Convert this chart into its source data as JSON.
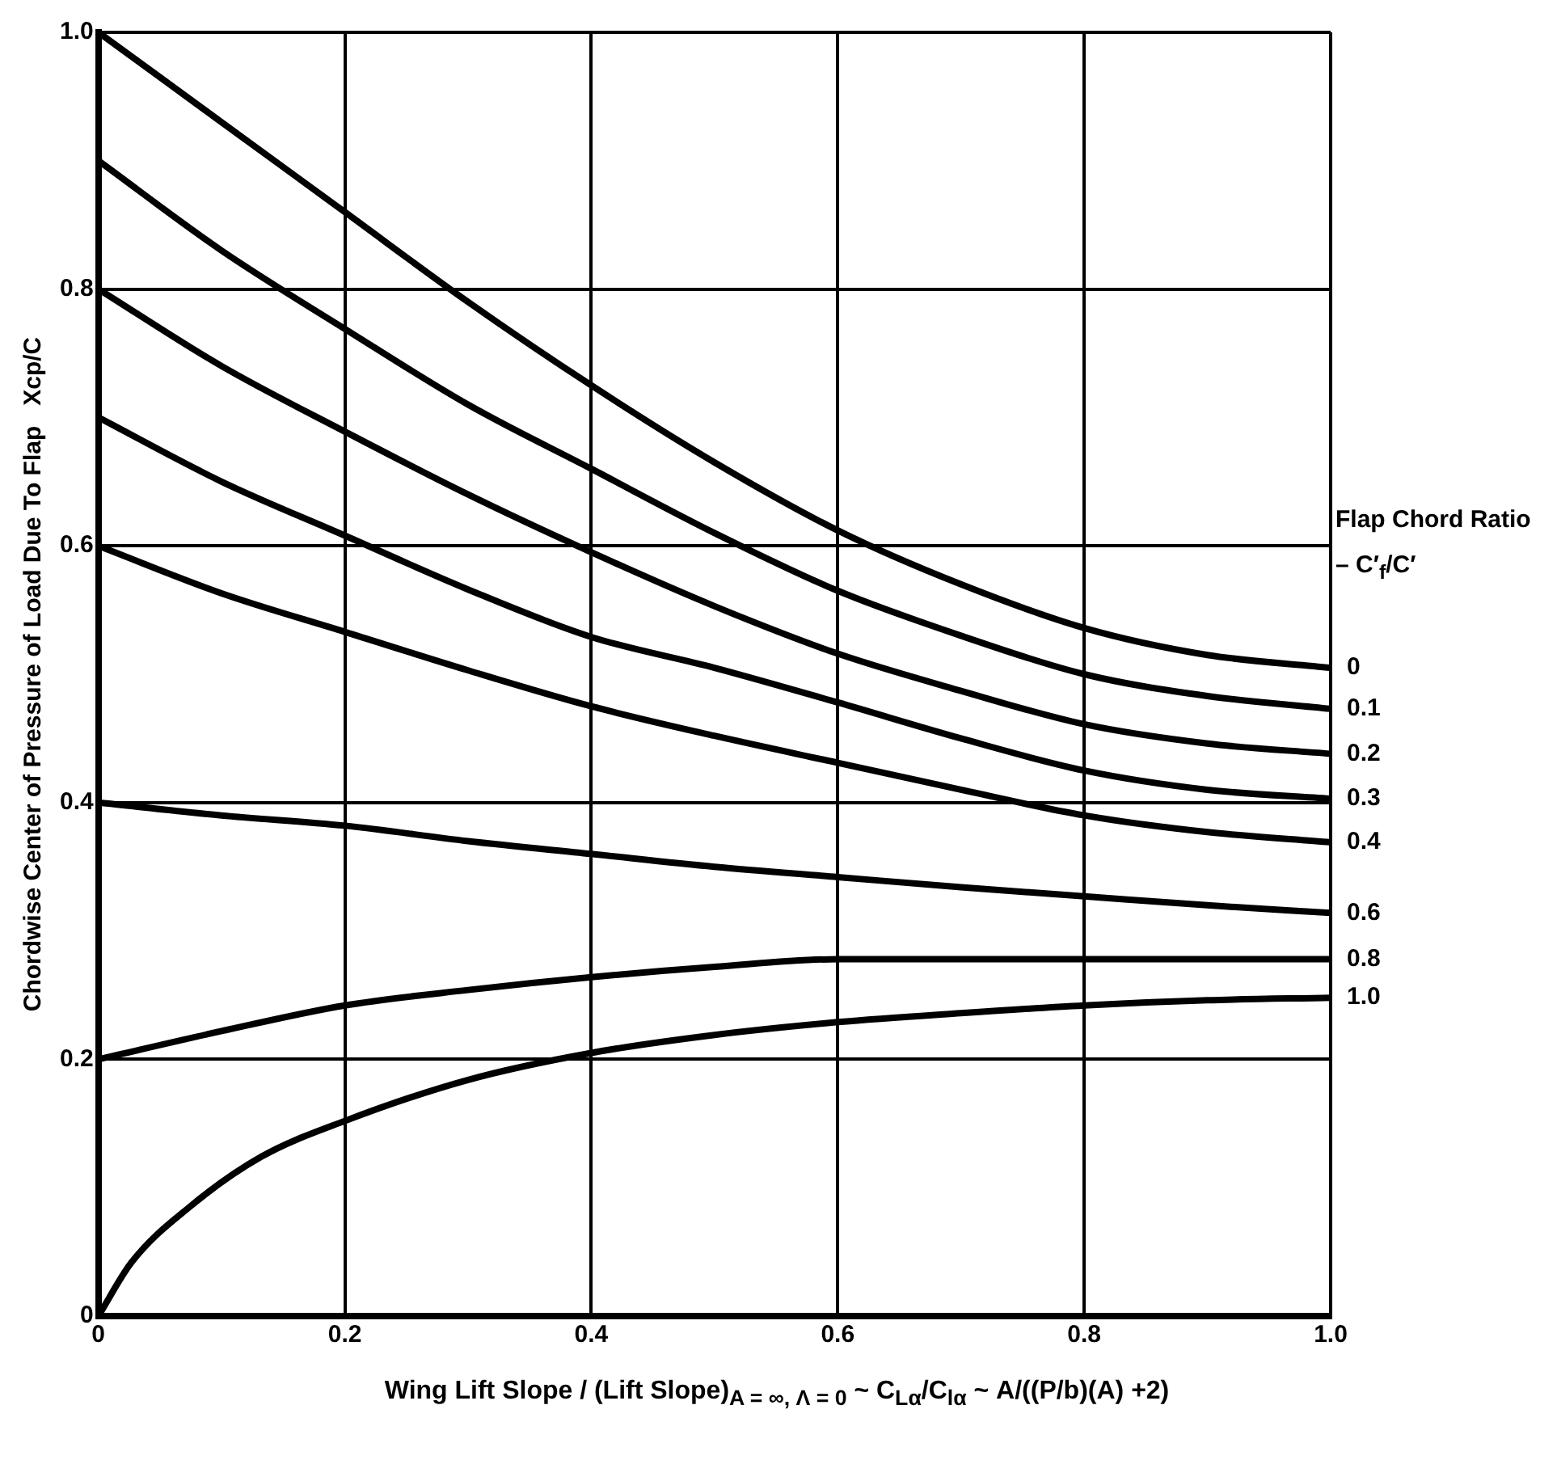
{
  "chart_data": {
    "type": "line",
    "xlabel": "Wing Lift Slope / (Lift Slope)$_{A = ∞, Λ = 0}$ ~ C$_{Lα}$/C$_{lα}$ ~ A/((P/b)(A) +2)",
    "ylabel": "Chordwise Center of Pressure of Load Due To Flap   Xcp/C",
    "legend_title": "Flap Chord Ratio – C′$_{f}$/C′",
    "x": [
      0,
      0.1,
      0.2,
      0.3,
      0.4,
      0.5,
      0.6,
      0.7,
      0.8,
      0.9,
      1.0
    ],
    "series": [
      {
        "name": "0",
        "color": "#000000",
        "values": [
          1.0,
          0.93,
          0.86,
          0.79,
          0.725,
          0.665,
          0.612,
          0.57,
          0.536,
          0.515,
          0.505
        ]
      },
      {
        "name": "0.1",
        "color": "#000000",
        "values": [
          0.9,
          0.83,
          0.769,
          0.71,
          0.66,
          0.61,
          0.565,
          0.53,
          0.5,
          0.483,
          0.473
        ]
      },
      {
        "name": "0.2",
        "color": "#000000",
        "values": [
          0.8,
          0.74,
          0.689,
          0.64,
          0.595,
          0.553,
          0.516,
          0.487,
          0.461,
          0.446,
          0.438
        ]
      },
      {
        "name": "0.3",
        "color": "#000000",
        "values": [
          0.7,
          0.65,
          0.608,
          0.566,
          0.529,
          0.505,
          0.478,
          0.45,
          0.425,
          0.41,
          0.403
        ]
      },
      {
        "name": "0.4",
        "color": "#000000",
        "values": [
          0.6,
          0.563,
          0.533,
          0.503,
          0.475,
          0.452,
          0.431,
          0.41,
          0.39,
          0.377,
          0.369
        ]
      },
      {
        "name": "0.6",
        "color": "#000000",
        "values": [
          0.4,
          0.39,
          0.382,
          0.37,
          0.36,
          0.35,
          0.342,
          0.334,
          0.327,
          0.32,
          0.314
        ]
      },
      {
        "name": "0.8",
        "color": "#000000",
        "values": [
          0.2,
          0.222,
          0.242,
          0.254,
          0.264,
          0.272,
          0.278,
          0.278,
          0.278,
          0.278,
          0.278
        ]
      },
      {
        "name": "1.0",
        "color": "#000000",
        "x": [
          0,
          0.027,
          0.074,
          0.132,
          0.2,
          0.3,
          0.4,
          0.5,
          0.6,
          0.7,
          0.8,
          0.9,
          1.0
        ],
        "values": [
          0,
          0.042,
          0.085,
          0.124,
          0.152,
          0.184,
          0.205,
          0.219,
          0.229,
          0.236,
          0.242,
          0.246,
          0.248
        ]
      }
    ],
    "xlim": [
      0,
      1
    ],
    "xticks": [
      0,
      0.2,
      0.4,
      0.6,
      0.8,
      {
        "value": 1,
        "label": "1.0"
      }
    ],
    "ylim": [
      0,
      1
    ],
    "yticks": [
      0,
      0.2,
      0.4,
      0.6,
      0.8,
      {
        "value": 1,
        "label": "1.0"
      }
    ],
    "grid": true,
    "legend": false,
    "marker": "none",
    "line_style": "solid"
  }
}
